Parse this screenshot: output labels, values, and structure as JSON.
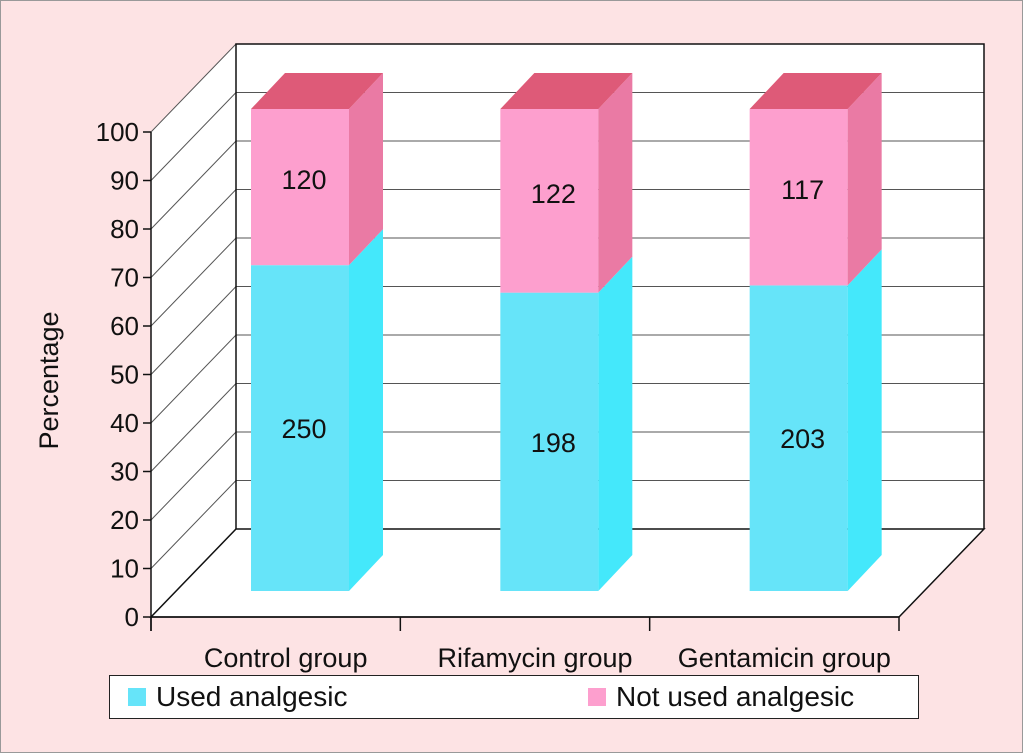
{
  "chart_data": {
    "type": "bar",
    "stacked": true,
    "three_d": true,
    "ylabel": "Percentage",
    "ylim": [
      0,
      100
    ],
    "yticks": [
      0,
      10,
      20,
      30,
      40,
      50,
      60,
      70,
      80,
      90,
      100
    ],
    "grid": true,
    "legend": "bottom",
    "categories": [
      "Control group",
      "Rifamycin group",
      "Gentamicin group"
    ],
    "series": [
      {
        "name": "Used analgesic",
        "color": "#66e4f9",
        "percent": [
          67.6,
          61.9,
          63.4
        ],
        "labels": [
          "250",
          "198",
          "203"
        ]
      },
      {
        "name": "Not used analgesic",
        "color": "#fd9fce",
        "percent": [
          32.4,
          38.1,
          36.6
        ],
        "labels": [
          "120",
          "122",
          "117"
        ]
      }
    ]
  }
}
